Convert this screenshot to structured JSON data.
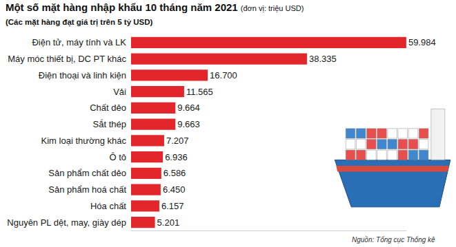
{
  "chart_data": {
    "type": "bar",
    "orientation": "horizontal",
    "title": "Một số mặt hàng nhập khẩu 10 tháng năm 2021",
    "title_note": "(đơn vị: triệu USD)",
    "subtitle": "(Các mặt hàng đạt giá trị trên 5 tỷ USD)",
    "source": "Nguồn: Tổng cục Thống kê",
    "categories": [
      "Điện tử, máy tính và LK",
      "Máy móc thiết bị, DC PT khác",
      "Điện thoại và linh kiện",
      "Vải",
      "Chất dẻo",
      "Sắt thép",
      "Kim loại thường khác",
      "Ô tô",
      "Sản phẩm chất dẻo",
      "Sản phẩm hoá chất",
      "Hóa chất",
      "Nguyên PL dệt, may, giày dép"
    ],
    "values": [
      59984,
      38335,
      16700,
      11565,
      9664,
      9663,
      7207,
      6936,
      6586,
      6450,
      6157,
      5201
    ],
    "value_labels": [
      "59.984",
      "38.335",
      "16.700",
      "11.565",
      "9.664",
      "9.663",
      "7.207",
      "6.936",
      "6.586",
      "6.450",
      "6.157",
      "5.201"
    ],
    "color": "#e3262b",
    "xlim": [
      0,
      60000
    ],
    "data_labels": true,
    "tick_labels": "y",
    "grid": false
  }
}
